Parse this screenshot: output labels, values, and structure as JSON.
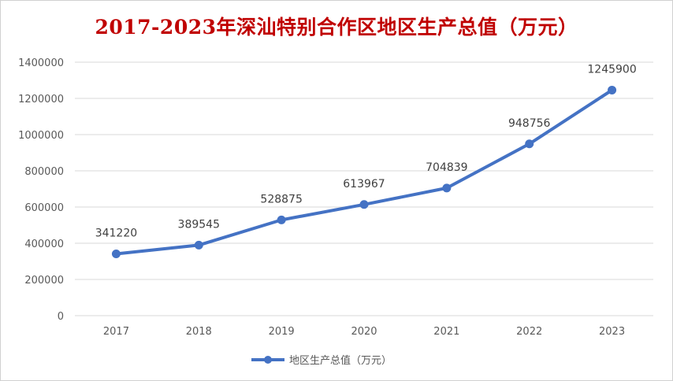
{
  "chart_data": {
    "type": "line",
    "title": "2017-2023年深汕特别合作区地区生产总值（万元）",
    "categories": [
      "2017",
      "2018",
      "2019",
      "2020",
      "2021",
      "2022",
      "2023"
    ],
    "series": [
      {
        "name": "地区生产总值（万元）",
        "values": [
          341220,
          389545,
          528875,
          613967,
          704839,
          948756,
          1245900
        ],
        "color": "#4472c4"
      }
    ],
    "y_ticks": [
      "0",
      "200000",
      "400000",
      "600000",
      "800000",
      "1000000",
      "1200000",
      "1400000"
    ],
    "ylim": [
      0,
      1400000
    ],
    "grid": true,
    "legend_position": "bottom",
    "data_labels": true,
    "title_color": "#c00000"
  }
}
